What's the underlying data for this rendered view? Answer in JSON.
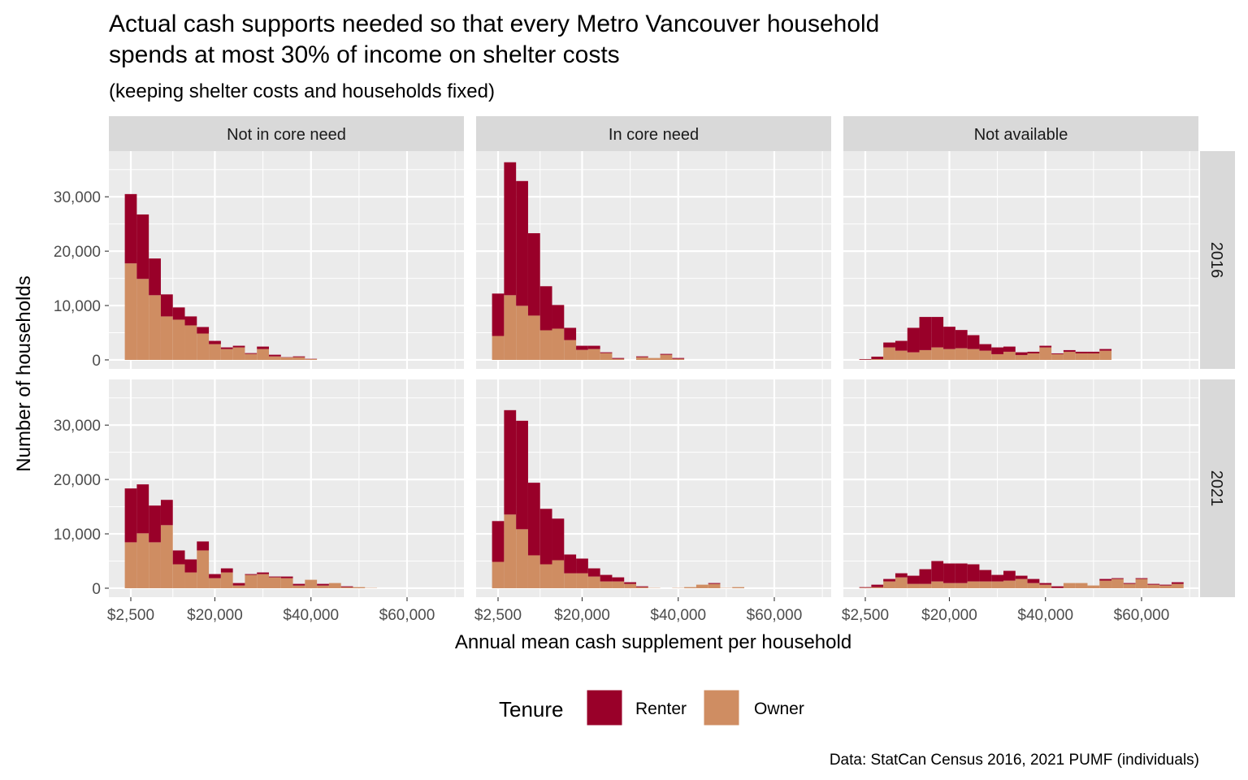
{
  "chart_data": {
    "type": "bar",
    "stacked": true,
    "title_line1": "Actual cash supports needed so that every Metro Vancouver household",
    "title_line2": "spends at most 30% of income on shelter costs",
    "subtitle": "(keeping shelter costs and households fixed)",
    "xlabel": "Annual mean cash supplement per household",
    "ylabel": "Number of households",
    "caption": "Data: StatCan Census 2016, 2021 PUMF (individuals)",
    "x_ticks": [
      2500,
      20000,
      40000,
      60000
    ],
    "x_tick_labels": [
      "$2,500",
      "$20,000",
      "$40,000",
      "$60,000"
    ],
    "y_ticks": [
      0,
      10000,
      20000,
      30000
    ],
    "y_tick_labels": [
      "0",
      "10,000",
      "20,000",
      "30,000"
    ],
    "xlim": [
      -2066,
      71840
    ],
    "ylim": [
      -1650,
      38400
    ],
    "bin_width": 2500,
    "bin_start_center": 2500,
    "grid": true,
    "column_facets": [
      "Not in core need",
      "In core need",
      "Not available"
    ],
    "row_facets": [
      "2016",
      "2021"
    ],
    "legend": {
      "title": "Tenure",
      "position": "bottom",
      "entries": [
        {
          "label": "Renter",
          "color": "#990029"
        },
        {
          "label": "Owner",
          "color": "#CF8D62"
        }
      ]
    },
    "panels": [
      {
        "row": "2016",
        "col": "Not in core need",
        "owner": [
          17750,
          14900,
          11900,
          8000,
          7400,
          6350,
          4850,
          2900,
          2000,
          2300,
          1100,
          2000,
          650,
          450,
          500,
          150
        ],
        "renter": [
          12750,
          11850,
          6750,
          4050,
          2250,
          1650,
          1200,
          600,
          300,
          300,
          150,
          450,
          300,
          50,
          150,
          50
        ]
      },
      {
        "row": "2016",
        "col": "In core need",
        "owner": [
          4400,
          11900,
          9950,
          8150,
          5450,
          5750,
          3650,
          1850,
          2000,
          1250,
          200,
          0,
          500,
          350,
          950,
          200
        ],
        "renter": [
          7800,
          24450,
          22950,
          15150,
          8100,
          4350,
          2250,
          750,
          600,
          150,
          150,
          0,
          150,
          0,
          150,
          150
        ]
      },
      {
        "row": "2016",
        "col": "Not available",
        "owner": [
          50,
          150,
          2300,
          1700,
          1400,
          1800,
          2300,
          2000,
          2150,
          2000,
          1700,
          1050,
          1500,
          900,
          1200,
          2300,
          1050,
          1500,
          1200,
          1200,
          1700
        ],
        "renter": [
          100,
          450,
          900,
          1800,
          4500,
          6100,
          5600,
          4100,
          3350,
          2550,
          1200,
          1250,
          950,
          500,
          300,
          300,
          150,
          300,
          300,
          300,
          300
        ]
      },
      {
        "row": "2021",
        "col": "Not in core need",
        "owner": [
          8450,
          10100,
          8450,
          11600,
          4400,
          2900,
          6950,
          1850,
          2900,
          500,
          2450,
          2600,
          2000,
          1850,
          500,
          1550,
          500,
          950,
          200,
          200,
          50
        ],
        "renter": [
          9900,
          9000,
          6750,
          4650,
          2550,
          2400,
          1650,
          750,
          750,
          450,
          150,
          300,
          150,
          300,
          300,
          0,
          300,
          0,
          150,
          0,
          0
        ]
      },
      {
        "row": "2021",
        "col": "In core need",
        "owner": [
          4850,
          13550,
          10850,
          6050,
          4400,
          5150,
          2750,
          2750,
          2150,
          1250,
          1250,
          800,
          200,
          50,
          0,
          50,
          200,
          650,
          800,
          50,
          200
        ],
        "renter": [
          7500,
          19200,
          19950,
          13350,
          10200,
          7650,
          3450,
          2700,
          1500,
          1200,
          750,
          300,
          150,
          0,
          0,
          0,
          0,
          0,
          150,
          0,
          0
        ]
      },
      {
        "row": "2021",
        "col": "Not available",
        "owner": [
          100,
          200,
          1250,
          2000,
          800,
          800,
          1250,
          950,
          950,
          1250,
          1250,
          1250,
          1400,
          1700,
          950,
          650,
          50,
          950,
          950,
          500,
          1400,
          1700,
          800,
          1700,
          650,
          500,
          800
        ],
        "renter": [
          100,
          450,
          450,
          750,
          1500,
          2700,
          3750,
          3600,
          3600,
          3150,
          2100,
          1200,
          1800,
          600,
          750,
          300,
          300,
          0,
          0,
          0,
          300,
          150,
          150,
          150,
          150,
          150,
          300
        ]
      }
    ]
  }
}
